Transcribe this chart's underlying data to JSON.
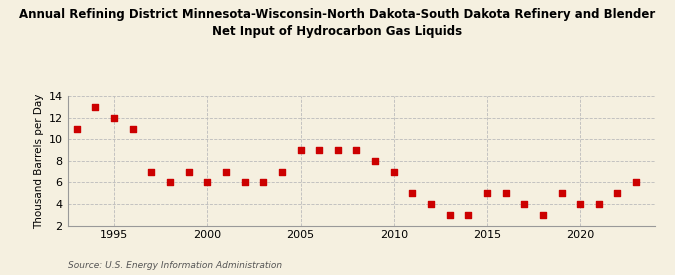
{
  "title": "Annual Refining District Minnesota-Wisconsin-North Dakota-South Dakota Refinery and Blender\nNet Input of Hydrocarbon Gas Liquids",
  "ylabel": "Thousand Barrels per Day",
  "source": "Source: U.S. Energy Information Administration",
  "years": [
    1993,
    1994,
    1995,
    1996,
    1997,
    1998,
    1999,
    2000,
    2001,
    2002,
    2003,
    2004,
    2005,
    2006,
    2007,
    2008,
    2009,
    2010,
    2011,
    2012,
    2013,
    2014,
    2015,
    2016,
    2017,
    2018,
    2019,
    2020,
    2021,
    2022,
    2023
  ],
  "values": [
    11,
    13,
    12,
    11,
    7,
    6,
    7,
    6,
    7,
    6,
    6,
    7,
    9,
    9,
    9,
    9,
    8,
    7,
    5,
    4,
    3,
    3,
    5,
    5,
    4,
    3,
    5,
    4,
    4,
    5,
    6
  ],
  "marker_color": "#cc0000",
  "marker_size": 18,
  "background_color": "#f5f0e0",
  "grid_color": "#bbbbbb",
  "ylim": [
    2,
    14
  ],
  "yticks": [
    2,
    4,
    6,
    8,
    10,
    12,
    14
  ],
  "xlim": [
    1992.5,
    2024
  ],
  "xticks": [
    1995,
    2000,
    2005,
    2010,
    2015,
    2020
  ],
  "title_fontsize": 8.5,
  "ylabel_fontsize": 7.5,
  "tick_fontsize": 8,
  "source_fontsize": 6.5
}
